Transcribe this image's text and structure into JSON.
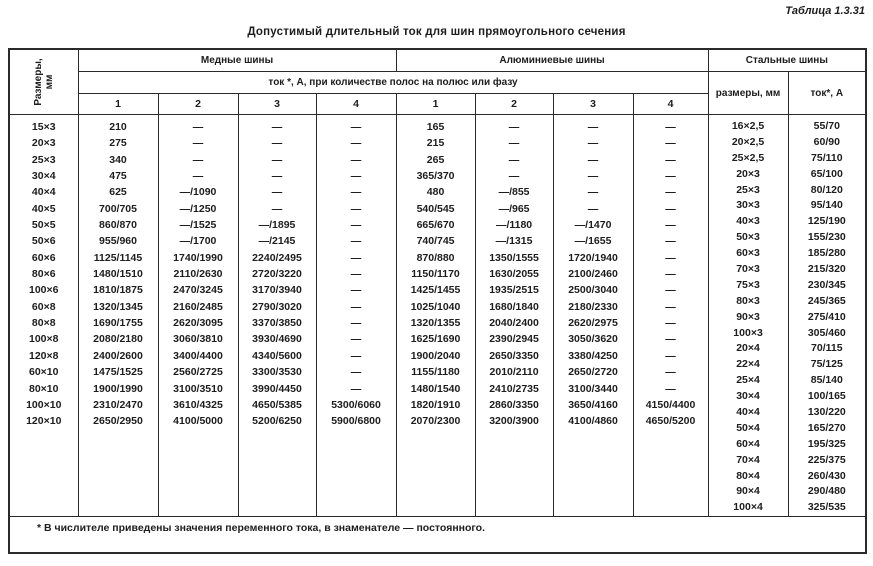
{
  "page": {
    "caption": "Таблица 1.3.31",
    "title": "Допустимый длительный ток для шин прямоугольного сечения",
    "footnote": "* В числителе приведены значения переменного тока, в знаменателе — постоянного."
  },
  "colors": {
    "ink": "#1d1d1f",
    "border": "#2a2a2a",
    "background": "#ffffff"
  },
  "header": {
    "size_column_line1": "Размеры,",
    "size_column_line2": "мм",
    "copper_group": "Медные шины",
    "aluminum_group": "Алюминиевые шины",
    "steel_group": "Стальные шины",
    "strips_subheader": "ток *, А, при количестве полос на полюс или фазу",
    "strip_counts": [
      "1",
      "2",
      "3",
      "4",
      "1",
      "2",
      "3",
      "4"
    ],
    "steel_size_header": "размеры, мм",
    "steel_current_header": "ток*, А"
  },
  "main_rows": [
    {
      "size": "15×3",
      "cu1": "210",
      "cu2": "—",
      "cu3": "—",
      "cu4": "—",
      "al1": "165",
      "al2": "—",
      "al3": "—",
      "al4": "—"
    },
    {
      "size": "20×3",
      "cu1": "275",
      "cu2": "—",
      "cu3": "—",
      "cu4": "—",
      "al1": "215",
      "al2": "—",
      "al3": "—",
      "al4": "—"
    },
    {
      "size": "25×3",
      "cu1": "340",
      "cu2": "—",
      "cu3": "—",
      "cu4": "—",
      "al1": "265",
      "al2": "—",
      "al3": "—",
      "al4": "—"
    },
    {
      "size": "30×4",
      "cu1": "475",
      "cu2": "—",
      "cu3": "—",
      "cu4": "—",
      "al1": "365/370",
      "al2": "—",
      "al3": "—",
      "al4": "—"
    },
    {
      "size": "40×4",
      "cu1": "625",
      "cu2": "—/1090",
      "cu3": "—",
      "cu4": "—",
      "al1": "480",
      "al2": "—/855",
      "al3": "—",
      "al4": "—"
    },
    {
      "size": "40×5",
      "cu1": "700/705",
      "cu2": "—/1250",
      "cu3": "—",
      "cu4": "—",
      "al1": "540/545",
      "al2": "—/965",
      "al3": "—",
      "al4": "—"
    },
    {
      "size": "50×5",
      "cu1": "860/870",
      "cu2": "—/1525",
      "cu3": "—/1895",
      "cu4": "—",
      "al1": "665/670",
      "al2": "—/1180",
      "al3": "—/1470",
      "al4": "—"
    },
    {
      "size": "50×6",
      "cu1": "955/960",
      "cu2": "—/1700",
      "cu3": "—/2145",
      "cu4": "—",
      "al1": "740/745",
      "al2": "—/1315",
      "al3": "—/1655",
      "al4": "—"
    },
    {
      "size": "60×6",
      "cu1": "1125/1145",
      "cu2": "1740/1990",
      "cu3": "2240/2495",
      "cu4": "—",
      "al1": "870/880",
      "al2": "1350/1555",
      "al3": "1720/1940",
      "al4": "—"
    },
    {
      "size": "80×6",
      "cu1": "1480/1510",
      "cu2": "2110/2630",
      "cu3": "2720/3220",
      "cu4": "—",
      "al1": "1150/1170",
      "al2": "1630/2055",
      "al3": "2100/2460",
      "al4": "—"
    },
    {
      "size": "100×6",
      "cu1": "1810/1875",
      "cu2": "2470/3245",
      "cu3": "3170/3940",
      "cu4": "—",
      "al1": "1425/1455",
      "al2": "1935/2515",
      "al3": "2500/3040",
      "al4": "—"
    },
    {
      "size": "60×8",
      "cu1": "1320/1345",
      "cu2": "2160/2485",
      "cu3": "2790/3020",
      "cu4": "—",
      "al1": "1025/1040",
      "al2": "1680/1840",
      "al3": "2180/2330",
      "al4": "—"
    },
    {
      "size": "80×8",
      "cu1": "1690/1755",
      "cu2": "2620/3095",
      "cu3": "3370/3850",
      "cu4": "—",
      "al1": "1320/1355",
      "al2": "2040/2400",
      "al3": "2620/2975",
      "al4": "—"
    },
    {
      "size": "100×8",
      "cu1": "2080/2180",
      "cu2": "3060/3810",
      "cu3": "3930/4690",
      "cu4": "—",
      "al1": "1625/1690",
      "al2": "2390/2945",
      "al3": "3050/3620",
      "al4": "—"
    },
    {
      "size": "120×8",
      "cu1": "2400/2600",
      "cu2": "3400/4400",
      "cu3": "4340/5600",
      "cu4": "—",
      "al1": "1900/2040",
      "al2": "2650/3350",
      "al3": "3380/4250",
      "al4": "—"
    },
    {
      "size": "60×10",
      "cu1": "1475/1525",
      "cu2": "2560/2725",
      "cu3": "3300/3530",
      "cu4": "—",
      "al1": "1155/1180",
      "al2": "2010/2110",
      "al3": "2650/2720",
      "al4": "—"
    },
    {
      "size": "80×10",
      "cu1": "1900/1990",
      "cu2": "3100/3510",
      "cu3": "3990/4450",
      "cu4": "—",
      "al1": "1480/1540",
      "al2": "2410/2735",
      "al3": "3100/3440",
      "al4": "—"
    },
    {
      "size": "100×10",
      "cu1": "2310/2470",
      "cu2": "3610/4325",
      "cu3": "4650/5385",
      "cu4": "5300/6060",
      "al1": "1820/1910",
      "al2": "2860/3350",
      "al3": "3650/4160",
      "al4": "4150/4400"
    },
    {
      "size": "120×10",
      "cu1": "2650/2950",
      "cu2": "4100/5000",
      "cu3": "5200/6250",
      "cu4": "5900/6800",
      "al1": "2070/2300",
      "al2": "3200/3900",
      "al3": "4100/4860",
      "al4": "4650/5200"
    }
  ],
  "steel_rows": [
    {
      "size": "16×2,5",
      "current": "55/70"
    },
    {
      "size": "20×2,5",
      "current": "60/90"
    },
    {
      "size": "25×2,5",
      "current": "75/110"
    },
    {
      "size": "20×3",
      "current": "65/100"
    },
    {
      "size": "25×3",
      "current": "80/120"
    },
    {
      "size": "30×3",
      "current": "95/140"
    },
    {
      "size": "40×3",
      "current": "125/190"
    },
    {
      "size": "50×3",
      "current": "155/230"
    },
    {
      "size": "60×3",
      "current": "185/280"
    },
    {
      "size": "70×3",
      "current": "215/320"
    },
    {
      "size": "75×3",
      "current": "230/345"
    },
    {
      "size": "80×3",
      "current": "245/365"
    },
    {
      "size": "90×3",
      "current": "275/410"
    },
    {
      "size": "100×3",
      "current": "305/460"
    },
    {
      "size": "20×4",
      "current": "70/115"
    },
    {
      "size": "22×4",
      "current": "75/125"
    },
    {
      "size": "25×4",
      "current": "85/140"
    },
    {
      "size": "30×4",
      "current": "100/165"
    },
    {
      "size": "40×4",
      "current": "130/220"
    },
    {
      "size": "50×4",
      "current": "165/270"
    },
    {
      "size": "60×4",
      "current": "195/325"
    },
    {
      "size": "70×4",
      "current": "225/375"
    },
    {
      "size": "80×4",
      "current": "260/430"
    },
    {
      "size": "90×4",
      "current": "290/480"
    },
    {
      "size": "100×4",
      "current": "325/535"
    }
  ]
}
